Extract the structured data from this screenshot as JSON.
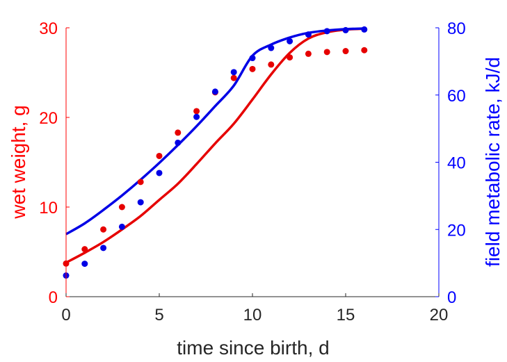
{
  "chart_data": {
    "type": "line",
    "title": "",
    "xlabel": "time since birth, d",
    "ylabel_left": "wet weight, g",
    "ylabel_right": "field metabolic rate, kJ/d",
    "xlim": [
      0,
      20
    ],
    "ylim_left": [
      0,
      30
    ],
    "ylim_right": [
      0,
      80
    ],
    "x_ticks": [
      0,
      5,
      10,
      15,
      20
    ],
    "y_left_ticks": [
      0,
      10,
      20,
      30
    ],
    "y_right_ticks": [
      0,
      20,
      40,
      60,
      80
    ],
    "grid": false,
    "colors": {
      "left": "#ff0000",
      "right": "#0000ff",
      "text": "#262626"
    },
    "series": [
      {
        "axis": "left",
        "style": "points",
        "color": "#e60000",
        "x": [
          0,
          1,
          2,
          3,
          4,
          5,
          6,
          7,
          8,
          9,
          10,
          11,
          12,
          13,
          14,
          15,
          16
        ],
        "y": [
          3.7,
          5.3,
          7.5,
          10.0,
          12.8,
          15.7,
          18.3,
          20.7,
          22.8,
          24.4,
          25.4,
          25.9,
          26.7,
          27.1,
          27.3,
          27.4,
          27.5
        ]
      },
      {
        "axis": "left",
        "style": "line",
        "color": "#e60000",
        "x": [
          0,
          1,
          2,
          3,
          4,
          5,
          6,
          7,
          8,
          9,
          10,
          11,
          12,
          13,
          14,
          15,
          16
        ],
        "y": [
          3.8,
          4.9,
          6.1,
          7.5,
          9.0,
          10.8,
          12.6,
          14.8,
          17.1,
          19.3,
          22.0,
          24.8,
          27.2,
          28.8,
          29.5,
          29.8,
          29.9
        ]
      },
      {
        "axis": "right",
        "style": "points",
        "color": "#0000e6",
        "x": [
          0,
          1,
          2,
          3,
          4,
          5,
          6,
          7,
          8,
          9,
          10,
          11,
          12,
          13,
          14,
          15,
          16
        ],
        "y": [
          6.3,
          9.8,
          14.5,
          20.8,
          28.1,
          36.8,
          45.8,
          53.5,
          61.0,
          66.8,
          71.0,
          74.0,
          76.0,
          78.0,
          79.0,
          79.3,
          79.5
        ]
      },
      {
        "axis": "right",
        "style": "line",
        "color": "#0000e6",
        "x": [
          0,
          1,
          2,
          3,
          4,
          5,
          6,
          7,
          8,
          9,
          10,
          11,
          12,
          13,
          14,
          15,
          16
        ],
        "y": [
          18.6,
          21.8,
          25.8,
          30.1,
          34.8,
          39.8,
          45.1,
          50.7,
          56.7,
          62.8,
          71.7,
          75.0,
          77.1,
          78.5,
          79.2,
          79.6,
          79.8
        ]
      }
    ]
  }
}
